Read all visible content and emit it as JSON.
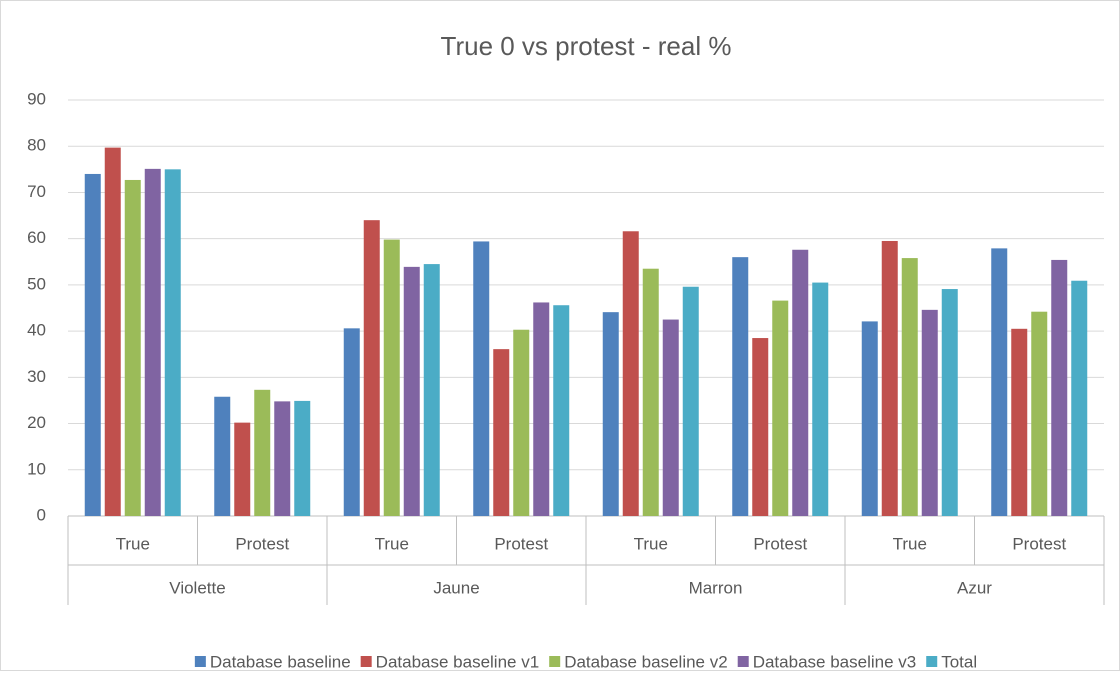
{
  "chart_data": {
    "type": "bar",
    "title": "True 0 vs protest - real %",
    "categories": [
      "True",
      "Protest",
      "True",
      "Protest",
      "True",
      "Protest",
      "True",
      "Protest"
    ],
    "groups": [
      "Violette",
      "Jaune",
      "Marron",
      "Azur"
    ],
    "series": [
      {
        "name": "Database baseline",
        "color": "#4f81bd",
        "values": [
          74.0,
          25.8,
          40.6,
          59.4,
          44.1,
          56.0,
          42.1,
          57.9
        ]
      },
      {
        "name": "Database baseline v1",
        "color": "#c0504d",
        "values": [
          79.7,
          20.2,
          64.0,
          36.1,
          61.6,
          38.5,
          59.5,
          40.5
        ]
      },
      {
        "name": "Database baseline v2",
        "color": "#9bbb59",
        "values": [
          72.7,
          27.3,
          59.8,
          40.3,
          53.5,
          46.6,
          55.8,
          44.2
        ]
      },
      {
        "name": "Database baseline v3",
        "color": "#8064a2",
        "values": [
          75.1,
          24.8,
          53.9,
          46.2,
          42.5,
          57.6,
          44.6,
          55.4
        ]
      },
      {
        "name": "Total",
        "color": "#4bacc6",
        "values": [
          75.0,
          24.9,
          54.5,
          45.6,
          49.6,
          50.5,
          49.1,
          50.9
        ]
      }
    ],
    "ylim": [
      0,
      90
    ],
    "yticks": [
      0,
      10,
      20,
      30,
      40,
      50,
      60,
      70,
      80,
      90
    ],
    "grid": true,
    "legend": "bottom"
  }
}
